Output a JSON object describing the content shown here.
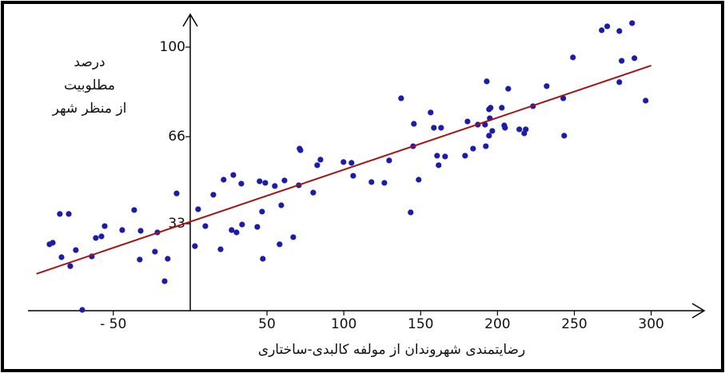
{
  "chart_data": {
    "type": "scatter",
    "x_label": "رضایتمندی شهروندان از مولفه کالبدی-ساختاری",
    "y_label_lines": [
      "درصد",
      "مطلوبیت",
      "از منظر شهر"
    ],
    "xlim": [
      -105,
      334
    ],
    "ylim": [
      0,
      112
    ],
    "xticks": [
      {
        "value": -50,
        "label": "- 50"
      },
      50,
      100,
      150,
      200,
      250,
      300
    ],
    "yticks": [
      33,
      66,
      100
    ],
    "points": {
      "color": "#1c1ca8",
      "x": [
        -91.5,
        -89.4,
        -84.8,
        -79.0,
        -83.7,
        -78.0,
        -74.4,
        -70.2,
        -64.0,
        -61.4,
        -57.7,
        -55.6,
        -44.2,
        -36.4,
        -32.8,
        -32.2,
        -22.9,
        -21.3,
        -16.6,
        -14.6,
        -8.8,
        3.1,
        5.2,
        9.9,
        15.1,
        19.8,
        21.8,
        27.0,
        28.1,
        30.2,
        33.3,
        33.8,
        43.7,
        45.2,
        46.8,
        47.3,
        48.9,
        55.1,
        59.3,
        58.2,
        61.4,
        67.1,
        70.7,
        71.2,
        71.8,
        80.1,
        82.7,
        84.8,
        99.8,
        105.0,
        106.1,
        118.0,
        126.4,
        129.5,
        137.3,
        143.5,
        145.1,
        145.6,
        148.7,
        156.5,
        158.6,
        160.7,
        161.7,
        163.3,
        165.9,
        178.9,
        180.5,
        184.1,
        187.2,
        191.9,
        192.4,
        193.0,
        194.5,
        195.0,
        194.5,
        195.5,
        196.6,
        202.8,
        204.4,
        204.9,
        207.0,
        214.2,
        217.4,
        218.4,
        223.1,
        232.0,
        242.8,
        243.4,
        249.1,
        267.8,
        271.4,
        279.3,
        280.8,
        279.3,
        287.6,
        289.1,
        296.4
      ],
      "y": [
        25.2,
        25.8,
        36.7,
        36.7,
        20.3,
        16.9,
        23.0,
        0.3,
        20.6,
        27.6,
        28.2,
        32.1,
        30.6,
        38.2,
        19.4,
        30.3,
        22.4,
        29.7,
        11.2,
        19.7,
        44.5,
        24.5,
        38.5,
        32.1,
        44.0,
        23.3,
        49.7,
        30.6,
        51.5,
        29.7,
        48.2,
        32.7,
        31.8,
        49.1,
        37.6,
        19.7,
        48.5,
        47.3,
        40.0,
        25.2,
        49.4,
        27.9,
        47.6,
        61.5,
        60.9,
        44.8,
        55.2,
        57.3,
        56.4,
        56.1,
        51.2,
        48.8,
        48.5,
        57.0,
        80.6,
        37.3,
        62.4,
        70.9,
        49.7,
        75.2,
        69.4,
        58.8,
        55.2,
        69.4,
        58.5,
        58.8,
        71.8,
        61.5,
        70.6,
        70.6,
        62.4,
        87.0,
        76.4,
        73.0,
        66.4,
        77.0,
        68.2,
        77.0,
        70.3,
        69.4,
        84.2,
        68.8,
        67.3,
        68.8,
        77.6,
        85.2,
        80.6,
        66.4,
        96.1,
        106.4,
        107.9,
        106.1,
        94.8,
        86.7,
        109.1,
        95.8,
        79.7
      ]
    },
    "trend_line": {
      "color": "#a51414",
      "x": [
        -100,
        300
      ],
      "y": [
        14,
        93
      ]
    }
  }
}
